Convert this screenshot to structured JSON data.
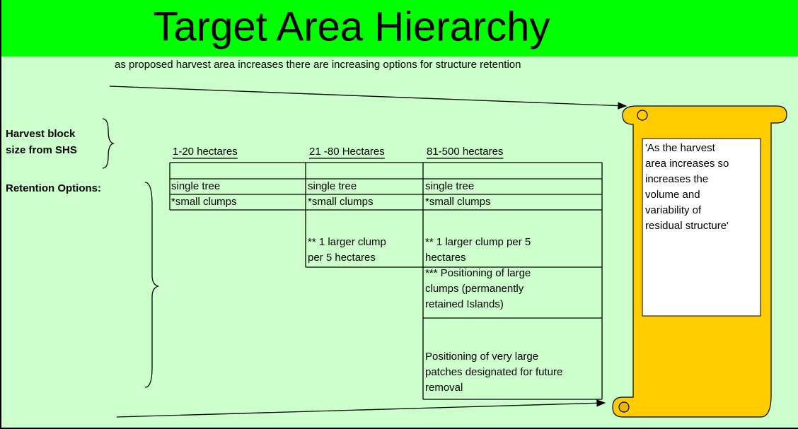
{
  "title": "Target Area Hierarchy",
  "subtitle": "as proposed harvest area increases there are increasing options for structure retention",
  "labels": {
    "block_size": [
      "Harvest block",
      "size from SHS"
    ],
    "retention": "Retention Options:"
  },
  "columns": [
    {
      "header": "1-20 hectares",
      "cells": [
        [
          "single tree"
        ],
        [
          "*small clumps"
        ]
      ]
    },
    {
      "header": "21 -80 Hectares",
      "cells": [
        [
          "single tree"
        ],
        [
          "*small clumps"
        ],
        [
          "** 1 larger clump",
          "per 5 hectares"
        ]
      ]
    },
    {
      "header": "81-500 hectares",
      "cells": [
        [
          "single tree"
        ],
        [
          "*small clumps"
        ],
        [
          "** 1 larger clump per 5",
          "hectares"
        ],
        [
          "*** Positioning of large",
          "clumps (permanently",
          "retained Islands)"
        ],
        [
          "Positioning of very large",
          "patches designated for future",
          "removal"
        ]
      ]
    }
  ],
  "note": [
    "'As the harvest",
    "area increases so",
    "increases the",
    "volume and",
    "variability of",
    "residual structure'"
  ]
}
